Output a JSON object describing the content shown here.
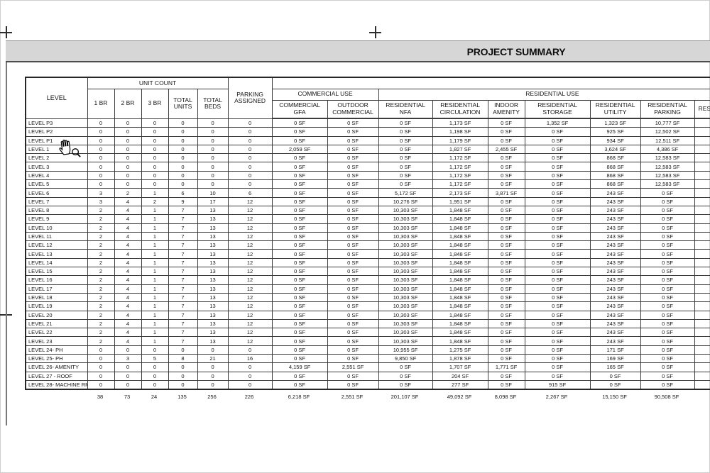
{
  "page": {
    "title": "PROJECT SUMMARY"
  },
  "icons": {
    "cursor": "hand-pan-cursor",
    "zoom": "magnifier-icon"
  },
  "table": {
    "group_headers": {
      "unit_count": "UNIT COUNT",
      "commercial_use": "COMMERCIAL USE",
      "residential_use": "RESIDENTIAL USE"
    },
    "col_headers": {
      "level": "LEVEL",
      "br1": "1 BR",
      "br2": "2 BR",
      "br3": "3 BR",
      "total_units": "TOTAL UNITS",
      "total_beds": "TOTAL BEDS",
      "parking_assigned": "PARKING ASSIGNED",
      "commercial_gfa": "COMMERCIAL GFA",
      "outdoor_commercial": "OUTDOOR COMMERCIAL",
      "residential_nfa": "RESIDENTIAL NFA",
      "residential_circulation": "RESIDENTIAL CIRCULATION",
      "indoor_amenity": "INDOOR AMENITY",
      "residential_storage": "RESIDENTIAL STORAGE",
      "residential_utility": "RESIDENTIAL UTILITY",
      "residential_parking": "RESIDENTIAL PARKING",
      "clipped": "RES"
    },
    "rows": [
      {
        "level": "LEVEL P3",
        "cells": [
          "0",
          "0",
          "0",
          "0",
          "0",
          "0",
          "0 SF",
          "0 SF",
          "0 SF",
          "1,173 SF",
          "0 SF",
          "1,352 SF",
          "1,323 SF",
          "10,777 SF",
          ""
        ]
      },
      {
        "level": "LEVEL P2",
        "cells": [
          "0",
          "0",
          "0",
          "0",
          "0",
          "0",
          "0 SF",
          "0 SF",
          "0 SF",
          "1,198 SF",
          "0 SF",
          "0 SF",
          "925 SF",
          "12,502 SF",
          ""
        ]
      },
      {
        "level": "LEVEL P1",
        "cells": [
          "0",
          "0",
          "0",
          "0",
          "0",
          "0",
          "0 SF",
          "0 SF",
          "0 SF",
          "1,179 SF",
          "0 SF",
          "0 SF",
          "934 SF",
          "12,511 SF",
          ""
        ]
      },
      {
        "level": "LEVEL 1",
        "cells": [
          "0",
          "0",
          "0",
          "0",
          "0",
          "0",
          "2,059 SF",
          "0 SF",
          "0 SF",
          "1,827 SF",
          "2,455 SF",
          "0 SF",
          "3,624 SF",
          "4,386 SF",
          ""
        ]
      },
      {
        "level": "LEVEL 2",
        "cells": [
          "0",
          "0",
          "0",
          "0",
          "0",
          "0",
          "0 SF",
          "0 SF",
          "0 SF",
          "1,172 SF",
          "0 SF",
          "0 SF",
          "868 SF",
          "12,583 SF",
          ""
        ]
      },
      {
        "level": "LEVEL 3",
        "cells": [
          "0",
          "0",
          "0",
          "0",
          "0",
          "0",
          "0 SF",
          "0 SF",
          "0 SF",
          "1,172 SF",
          "0 SF",
          "0 SF",
          "868 SF",
          "12,583 SF",
          ""
        ]
      },
      {
        "level": "LEVEL 4",
        "cells": [
          "0",
          "0",
          "0",
          "0",
          "0",
          "0",
          "0 SF",
          "0 SF",
          "0 SF",
          "1,172 SF",
          "0 SF",
          "0 SF",
          "868 SF",
          "12,583 SF",
          ""
        ]
      },
      {
        "level": "LEVEL 5",
        "cells": [
          "0",
          "0",
          "0",
          "0",
          "0",
          "0",
          "0 SF",
          "0 SF",
          "0 SF",
          "1,172 SF",
          "0 SF",
          "0 SF",
          "868 SF",
          "12,583 SF",
          ""
        ]
      },
      {
        "level": "LEVEL 6",
        "cells": [
          "3",
          "2",
          "1",
          "6",
          "10",
          "6",
          "0 SF",
          "0 SF",
          "5,172 SF",
          "2,173 SF",
          "3,871 SF",
          "0 SF",
          "243 SF",
          "0 SF",
          ""
        ]
      },
      {
        "level": "LEVEL 7",
        "cells": [
          "3",
          "4",
          "2",
          "9",
          "17",
          "12",
          "0 SF",
          "0 SF",
          "10,276 SF",
          "1,951 SF",
          "0 SF",
          "0 SF",
          "243 SF",
          "0 SF",
          ""
        ]
      },
      {
        "level": "LEVEL 8",
        "cells": [
          "2",
          "4",
          "1",
          "7",
          "13",
          "12",
          "0 SF",
          "0 SF",
          "10,303 SF",
          "1,848 SF",
          "0 SF",
          "0 SF",
          "243 SF",
          "0 SF",
          ""
        ]
      },
      {
        "level": "LEVEL 9",
        "cells": [
          "2",
          "4",
          "1",
          "7",
          "13",
          "12",
          "0 SF",
          "0 SF",
          "10,303 SF",
          "1,848 SF",
          "0 SF",
          "0 SF",
          "243 SF",
          "0 SF",
          ""
        ]
      },
      {
        "level": "LEVEL 10",
        "cells": [
          "2",
          "4",
          "1",
          "7",
          "13",
          "12",
          "0 SF",
          "0 SF",
          "10,303 SF",
          "1,848 SF",
          "0 SF",
          "0 SF",
          "243 SF",
          "0 SF",
          ""
        ]
      },
      {
        "level": "LEVEL 11",
        "cells": [
          "2",
          "4",
          "1",
          "7",
          "13",
          "12",
          "0 SF",
          "0 SF",
          "10,303 SF",
          "1,848 SF",
          "0 SF",
          "0 SF",
          "243 SF",
          "0 SF",
          ""
        ]
      },
      {
        "level": "LEVEL 12",
        "cells": [
          "2",
          "4",
          "1",
          "7",
          "13",
          "12",
          "0 SF",
          "0 SF",
          "10,303 SF",
          "1,848 SF",
          "0 SF",
          "0 SF",
          "243 SF",
          "0 SF",
          ""
        ]
      },
      {
        "level": "LEVEL 13",
        "cells": [
          "2",
          "4",
          "1",
          "7",
          "13",
          "12",
          "0 SF",
          "0 SF",
          "10,303 SF",
          "1,848 SF",
          "0 SF",
          "0 SF",
          "243 SF",
          "0 SF",
          ""
        ]
      },
      {
        "level": "LEVEL 14",
        "cells": [
          "2",
          "4",
          "1",
          "7",
          "13",
          "12",
          "0 SF",
          "0 SF",
          "10,303 SF",
          "1,848 SF",
          "0 SF",
          "0 SF",
          "243 SF",
          "0 SF",
          ""
        ]
      },
      {
        "level": "LEVEL 15",
        "cells": [
          "2",
          "4",
          "1",
          "7",
          "13",
          "12",
          "0 SF",
          "0 SF",
          "10,303 SF",
          "1,848 SF",
          "0 SF",
          "0 SF",
          "243 SF",
          "0 SF",
          ""
        ]
      },
      {
        "level": "LEVEL 16",
        "cells": [
          "2",
          "4",
          "1",
          "7",
          "13",
          "12",
          "0 SF",
          "0 SF",
          "10,303 SF",
          "1,848 SF",
          "0 SF",
          "0 SF",
          "243 SF",
          "0 SF",
          ""
        ]
      },
      {
        "level": "LEVEL 17",
        "cells": [
          "2",
          "4",
          "1",
          "7",
          "13",
          "12",
          "0 SF",
          "0 SF",
          "10,303 SF",
          "1,848 SF",
          "0 SF",
          "0 SF",
          "243 SF",
          "0 SF",
          ""
        ]
      },
      {
        "level": "LEVEL 18",
        "cells": [
          "2",
          "4",
          "1",
          "7",
          "13",
          "12",
          "0 SF",
          "0 SF",
          "10,303 SF",
          "1,848 SF",
          "0 SF",
          "0 SF",
          "243 SF",
          "0 SF",
          ""
        ]
      },
      {
        "level": "LEVEL 19",
        "cells": [
          "2",
          "4",
          "1",
          "7",
          "13",
          "12",
          "0 SF",
          "0 SF",
          "10,303 SF",
          "1,848 SF",
          "0 SF",
          "0 SF",
          "243 SF",
          "0 SF",
          ""
        ]
      },
      {
        "level": "LEVEL 20",
        "cells": [
          "2",
          "4",
          "1",
          "7",
          "13",
          "12",
          "0 SF",
          "0 SF",
          "10,303 SF",
          "1,848 SF",
          "0 SF",
          "0 SF",
          "243 SF",
          "0 SF",
          ""
        ]
      },
      {
        "level": "LEVEL 21",
        "cells": [
          "2",
          "4",
          "1",
          "7",
          "13",
          "12",
          "0 SF",
          "0 SF",
          "10,303 SF",
          "1,848 SF",
          "0 SF",
          "0 SF",
          "243 SF",
          "0 SF",
          ""
        ]
      },
      {
        "level": "LEVEL 22",
        "cells": [
          "2",
          "4",
          "1",
          "7",
          "13",
          "12",
          "0 SF",
          "0 SF",
          "10,303 SF",
          "1,848 SF",
          "0 SF",
          "0 SF",
          "243 SF",
          "0 SF",
          ""
        ]
      },
      {
        "level": "LEVEL 23",
        "cells": [
          "2",
          "4",
          "1",
          "7",
          "13",
          "12",
          "0 SF",
          "0 SF",
          "10,303 SF",
          "1,848 SF",
          "0 SF",
          "0 SF",
          "243 SF",
          "0 SF",
          ""
        ]
      },
      {
        "level": "LEVEL 24- PH",
        "cells": [
          "0",
          "0",
          "0",
          "0",
          "0",
          "0",
          "0 SF",
          "0 SF",
          "10,955 SF",
          "1,275 SF",
          "0 SF",
          "0 SF",
          "171 SF",
          "0 SF",
          ""
        ]
      },
      {
        "level": "LEVEL 25- PH",
        "cells": [
          "0",
          "3",
          "5",
          "8",
          "21",
          "16",
          "0 SF",
          "0 SF",
          "9,850 SF",
          "1,878 SF",
          "0 SF",
          "0 SF",
          "169 SF",
          "0 SF",
          ""
        ]
      },
      {
        "level": "LEVEL 26- AMENITY",
        "cells": [
          "0",
          "0",
          "0",
          "0",
          "0",
          "0",
          "4,159 SF",
          "2,551 SF",
          "0 SF",
          "1,707 SF",
          "1,771 SF",
          "0 SF",
          "165 SF",
          "0 SF",
          ""
        ]
      },
      {
        "level": "LEVEL 27 - ROOF",
        "cells": [
          "0",
          "0",
          "0",
          "0",
          "0",
          "0",
          "0 SF",
          "0 SF",
          "0 SF",
          "204 SF",
          "0 SF",
          "0 SF",
          "0 SF",
          "0 SF",
          ""
        ]
      },
      {
        "level": "LEVEL 28- MACHINE RM",
        "cells": [
          "0",
          "0",
          "0",
          "0",
          "0",
          "0",
          "0 SF",
          "0 SF",
          "0 SF",
          "277 SF",
          "0 SF",
          "915 SF",
          "0 SF",
          "0 SF",
          ""
        ]
      }
    ],
    "totals": [
      "38",
      "73",
      "24",
      "135",
      "256",
      "226",
      "6,218 SF",
      "2,551 SF",
      "201,107 SF",
      "49,092 SF",
      "8,098 SF",
      "2,267 SF",
      "15,150 SF",
      "90,508 SF",
      ""
    ]
  }
}
